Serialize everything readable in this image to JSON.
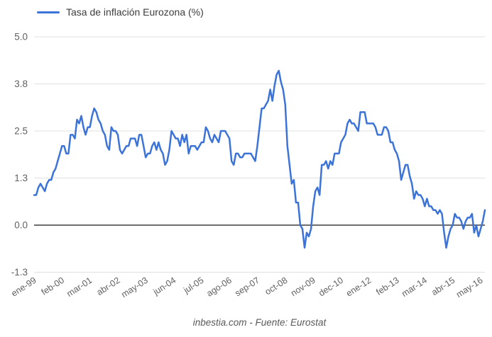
{
  "legend": {
    "label": "Tasa de inflación Eurozona (%)"
  },
  "footer": {
    "text": "inbestia.com - Fuente: Eurostat"
  },
  "chart_data": {
    "type": "line",
    "title": "",
    "series": [
      {
        "name": "Tasa de inflación Eurozona (%)",
        "x_start": "1999-01",
        "x_interval": "month",
        "n_points": 211,
        "values": [
          0.8,
          0.8,
          1.0,
          1.1,
          1.0,
          0.9,
          1.1,
          1.2,
          1.2,
          1.4,
          1.5,
          1.7,
          1.9,
          2.1,
          2.1,
          1.9,
          1.9,
          2.4,
          2.4,
          2.3,
          2.8,
          2.7,
          2.9,
          2.6,
          2.4,
          2.6,
          2.6,
          2.9,
          3.1,
          3.0,
          2.8,
          2.7,
          2.5,
          2.4,
          2.1,
          2.0,
          2.6,
          2.5,
          2.5,
          2.4,
          2.0,
          1.9,
          2.0,
          2.1,
          2.1,
          2.3,
          2.3,
          2.3,
          2.1,
          2.4,
          2.4,
          2.1,
          1.8,
          1.9,
          1.9,
          2.1,
          2.2,
          2.0,
          2.2,
          2.0,
          1.9,
          1.6,
          1.7,
          2.0,
          2.5,
          2.4,
          2.3,
          2.3,
          2.1,
          2.4,
          2.2,
          2.4,
          1.9,
          2.1,
          2.1,
          2.1,
          2.0,
          2.1,
          2.2,
          2.2,
          2.6,
          2.5,
          2.3,
          2.2,
          2.4,
          2.3,
          2.2,
          2.5,
          2.5,
          2.5,
          2.4,
          2.3,
          1.7,
          1.6,
          1.9,
          1.9,
          1.8,
          1.8,
          1.9,
          1.9,
          1.9,
          1.9,
          1.8,
          1.7,
          2.1,
          2.6,
          3.1,
          3.1,
          3.2,
          3.3,
          3.6,
          3.3,
          3.7,
          4.0,
          4.1,
          3.8,
          3.6,
          3.2,
          2.1,
          1.6,
          1.1,
          1.2,
          0.6,
          0.6,
          0.0,
          -0.1,
          -0.6,
          -0.2,
          -0.3,
          -0.1,
          0.5,
          0.9,
          1.0,
          0.8,
          1.6,
          1.6,
          1.7,
          1.5,
          1.7,
          1.6,
          1.9,
          1.9,
          1.9,
          2.2,
          2.3,
          2.4,
          2.7,
          2.8,
          2.7,
          2.7,
          2.6,
          2.5,
          3.0,
          3.0,
          3.0,
          2.7,
          2.7,
          2.7,
          2.7,
          2.6,
          2.4,
          2.4,
          2.4,
          2.6,
          2.6,
          2.5,
          2.2,
          2.2,
          2.0,
          1.9,
          1.7,
          1.2,
          1.4,
          1.6,
          1.6,
          1.3,
          1.1,
          0.7,
          0.9,
          0.8,
          0.8,
          0.7,
          0.5,
          0.7,
          0.5,
          0.5,
          0.4,
          0.4,
          0.3,
          0.4,
          0.3,
          -0.2,
          -0.6,
          -0.3,
          -0.1,
          0.0,
          0.3,
          0.2,
          0.2,
          0.1,
          -0.1,
          0.1,
          0.2,
          0.2,
          0.3,
          -0.2,
          0.0,
          -0.3,
          -0.1,
          0.1,
          0.4
        ]
      }
    ],
    "x_tick_labels": [
      "ene-99",
      "feb-00",
      "mar-01",
      "abr-02",
      "may-03",
      "jun-04",
      "jul-05",
      "ago-06",
      "sep-07",
      "oct-08",
      "nov-09",
      "dec-10",
      "ene-12",
      "feb-13",
      "mar-14",
      "abr-15",
      "may-16"
    ],
    "x_tick_interval_months": 13,
    "y_tick_labels": [
      "5.0",
      "3.8",
      "2.5",
      "1.3",
      "0.0",
      "-1.3"
    ],
    "y_tick_values": [
      5.0,
      3.75,
      2.5,
      1.25,
      0.0,
      -1.25
    ],
    "ylim": [
      -1.25,
      5.0
    ],
    "grid": true,
    "legend_position": "top-left",
    "colors": {
      "line": "#3c73d8",
      "grid": "#e0e0e0",
      "zero_axis": "#3d3d3d",
      "tick_text": "#616161",
      "legend_text": "#3c3c3c",
      "footer_text": "#595959"
    }
  }
}
